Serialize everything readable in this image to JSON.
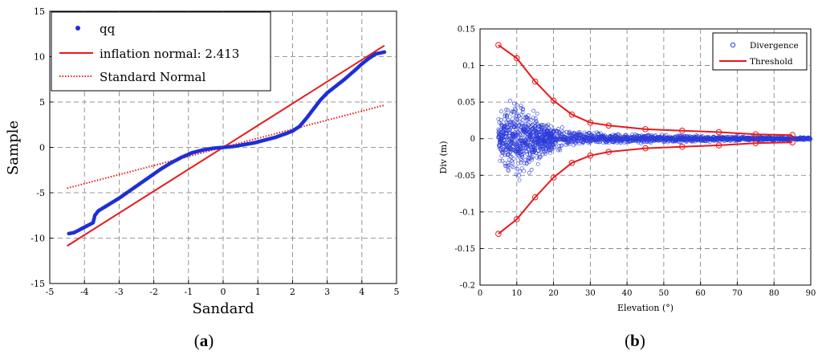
{
  "panel_a_caption": "a",
  "panel_b_caption": "b",
  "chart_data": [
    {
      "id": "a",
      "type": "scatter",
      "xlabel": "Sandard",
      "ylabel": "Sample",
      "xlim": [
        -5,
        5
      ],
      "ylim": [
        -15,
        15
      ],
      "xticks": [
        -5,
        -4,
        -3,
        -2,
        -1,
        0,
        1,
        2,
        3,
        4,
        5
      ],
      "yticks": [
        -15,
        -10,
        -5,
        0,
        5,
        10,
        15
      ],
      "grid": true,
      "legend_position": "top-left",
      "legend": [
        "qq",
        "inflation normal: 2.413",
        "Standard Normal"
      ],
      "series": [
        {
          "name": "qq",
          "kind": "points",
          "color": "#1f2fd6",
          "points": [
            [
              -4.45,
              -9.5
            ],
            [
              -4.3,
              -9.4
            ],
            [
              -4.1,
              -9.0
            ],
            [
              -3.9,
              -8.6
            ],
            [
              -3.75,
              -8.3
            ],
            [
              -3.7,
              -7.5
            ],
            [
              -3.6,
              -7.0
            ],
            [
              -3.3,
              -6.3
            ],
            [
              -3.0,
              -5.6
            ],
            [
              -2.7,
              -4.8
            ],
            [
              -2.4,
              -4.0
            ],
            [
              -2.1,
              -3.2
            ],
            [
              -1.8,
              -2.4
            ],
            [
              -1.5,
              -1.7
            ],
            [
              -1.2,
              -1.1
            ],
            [
              -0.9,
              -0.6
            ],
            [
              -0.6,
              -0.3
            ],
            [
              -0.3,
              -0.1
            ],
            [
              0.0,
              0.0
            ],
            [
              0.3,
              0.1
            ],
            [
              0.6,
              0.3
            ],
            [
              0.9,
              0.5
            ],
            [
              1.2,
              0.8
            ],
            [
              1.5,
              1.1
            ],
            [
              1.8,
              1.5
            ],
            [
              2.0,
              1.8
            ],
            [
              2.2,
              2.3
            ],
            [
              2.4,
              3.2
            ],
            [
              2.6,
              4.2
            ],
            [
              2.8,
              5.2
            ],
            [
              3.0,
              6.0
            ],
            [
              3.2,
              6.6
            ],
            [
              3.5,
              7.5
            ],
            [
              3.8,
              8.5
            ],
            [
              4.0,
              9.2
            ],
            [
              4.2,
              9.8
            ],
            [
              4.4,
              10.3
            ],
            [
              4.65,
              10.5
            ]
          ]
        },
        {
          "name": "inflation normal: 2.413",
          "kind": "line",
          "color": "#e8191c",
          "points": [
            [
              -4.5,
              -10.86
            ],
            [
              4.65,
              11.22
            ]
          ]
        },
        {
          "name": "Standard Normal",
          "kind": "dotted-line",
          "color": "#e8191c",
          "points": [
            [
              -4.5,
              -4.5
            ],
            [
              4.65,
              4.65
            ]
          ]
        }
      ]
    },
    {
      "id": "b",
      "type": "scatter",
      "xlabel": "Elevation (°)",
      "ylabel": "Div (m)",
      "xlim": [
        0,
        90
      ],
      "ylim": [
        -0.2,
        0.15
      ],
      "xticks": [
        0,
        10,
        20,
        30,
        40,
        50,
        60,
        70,
        80,
        90
      ],
      "yticks": [
        -0.2,
        -0.15,
        -0.1,
        -0.05,
        0,
        0.05,
        0.1,
        0.15
      ],
      "ytick_labels": [
        "-0.2",
        "-0.15",
        "-0.1",
        "-0.05",
        "0",
        "0.05",
        "0.1",
        "0.15"
      ],
      "grid": true,
      "legend_position": "top-right",
      "legend": [
        "Divergence",
        "Threshold"
      ],
      "series": [
        {
          "name": "Divergence",
          "kind": "open-circles-band",
          "color": "#2b3bd9",
          "envelope": [
            [
              5,
              0.045
            ],
            [
              8,
              0.055
            ],
            [
              10,
              0.058
            ],
            [
              12,
              0.055
            ],
            [
              14,
              0.05
            ],
            [
              17,
              0.03
            ],
            [
              20,
              0.02
            ],
            [
              25,
              0.014
            ],
            [
              30,
              0.01
            ],
            [
              40,
              0.008
            ],
            [
              50,
              0.006
            ],
            [
              60,
              0.005
            ],
            [
              70,
              0.004
            ],
            [
              80,
              0.003
            ],
            [
              90,
              0.002
            ]
          ]
        },
        {
          "name": "Threshold",
          "kind": "line-with-circles",
          "color": "#e8191c",
          "upper": [
            [
              5,
              0.128
            ],
            [
              10,
              0.11
            ],
            [
              15,
              0.078
            ],
            [
              20,
              0.052
            ],
            [
              25,
              0.033
            ],
            [
              30,
              0.022
            ],
            [
              35,
              0.018
            ],
            [
              45,
              0.013
            ],
            [
              55,
              0.011
            ],
            [
              65,
              0.009
            ],
            [
              75,
              0.006
            ],
            [
              85,
              0.005
            ]
          ],
          "lower": [
            [
              5,
              -0.13
            ],
            [
              10,
              -0.11
            ],
            [
              15,
              -0.08
            ],
            [
              20,
              -0.053
            ],
            [
              25,
              -0.033
            ],
            [
              30,
              -0.023
            ],
            [
              35,
              -0.018
            ],
            [
              45,
              -0.013
            ],
            [
              55,
              -0.011
            ],
            [
              65,
              -0.009
            ],
            [
              75,
              -0.006
            ],
            [
              85,
              -0.005
            ]
          ]
        }
      ]
    }
  ]
}
